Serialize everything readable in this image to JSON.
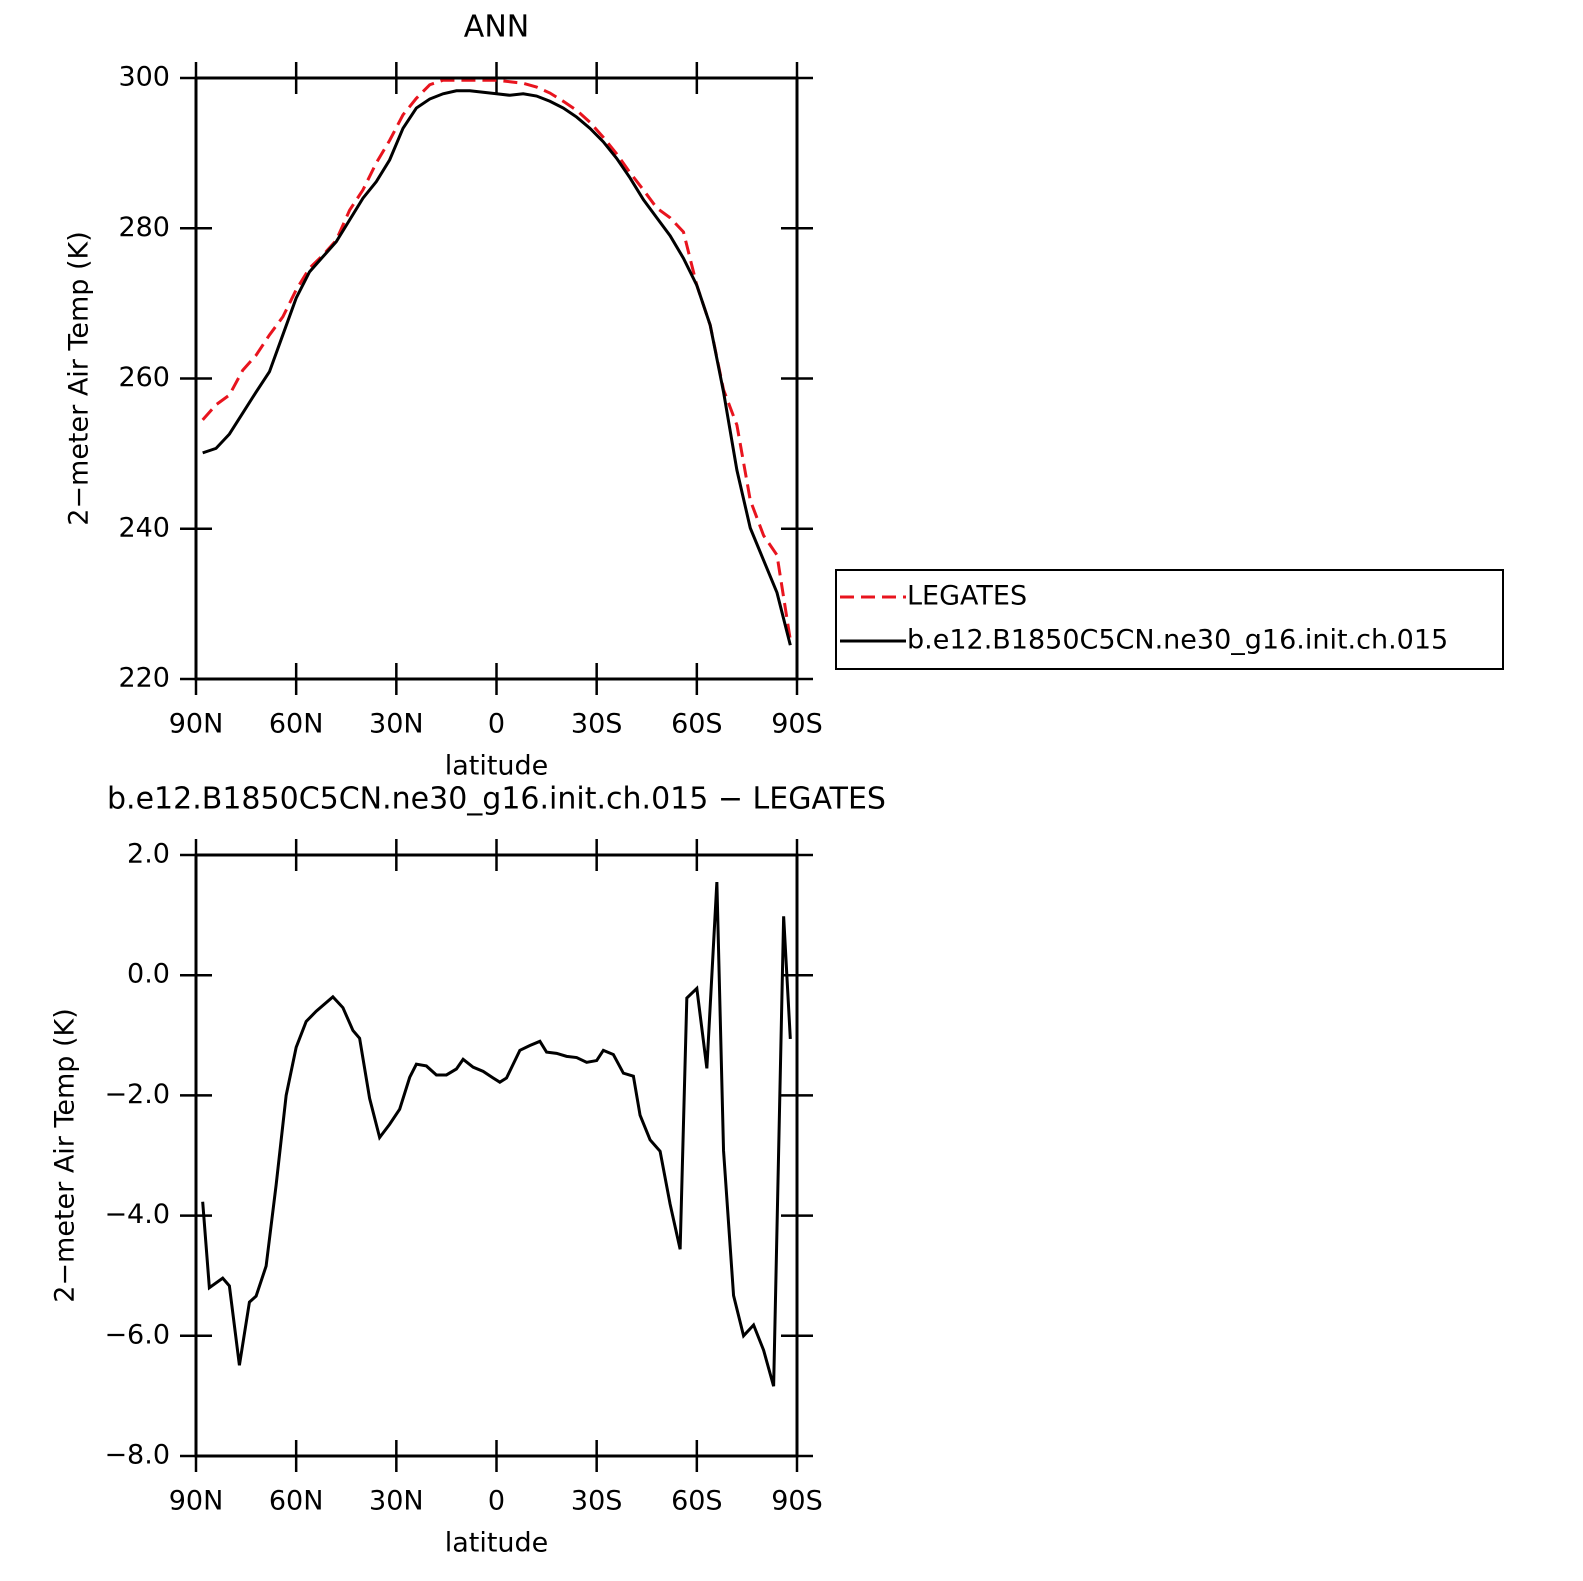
{
  "chart_data": [
    {
      "type": "line",
      "title": "ANN",
      "x_label": "latitude",
      "y_label": "2−meter Air Temp (K)",
      "x": [
        88,
        84,
        80,
        76,
        72,
        68,
        64,
        60,
        56,
        52,
        48,
        44,
        40,
        36,
        32,
        28,
        24,
        20,
        16,
        12,
        8,
        4,
        0,
        -4,
        -8,
        -12,
        -16,
        -20,
        -24,
        -28,
        -32,
        -36,
        -40,
        -44,
        -48,
        -52,
        -56,
        -60,
        -64,
        -68,
        -72,
        -76,
        -80,
        -84,
        -88
      ],
      "series": [
        {
          "name": "LEGATES",
          "color": "#e8141e",
          "dash": true,
          "values": [
            254.5,
            256.5,
            257.8,
            261.1,
            263.1,
            265.8,
            268.2,
            271.8,
            274.7,
            276.4,
            278.4,
            282.4,
            285.1,
            288.7,
            291.7,
            295.1,
            297.3,
            299.1,
            299.7,
            299.7,
            299.7,
            299.7,
            299.7,
            299.5,
            299.3,
            298.8,
            298.0,
            296.9,
            295.7,
            294.1,
            292.1,
            289.9,
            287.4,
            285.1,
            282.7,
            281.4,
            279.5,
            272.4,
            267.1,
            258.5,
            253.8,
            243.8,
            239.1,
            236.5,
            225.2
          ]
        },
        {
          "name": "b.e12.B1850C5CN.ne30_g16.init.ch.015",
          "color": "#000000",
          "dash": false,
          "values": [
            250.1,
            250.7,
            252.6,
            255.4,
            258.2,
            260.9,
            265.8,
            270.7,
            274.2,
            276.2,
            278.2,
            281.1,
            284.0,
            286.2,
            289.1,
            293.3,
            296.0,
            297.2,
            297.9,
            298.3,
            298.3,
            298.1,
            297.9,
            297.7,
            297.9,
            297.6,
            296.9,
            296.0,
            294.8,
            293.3,
            291.5,
            289.3,
            286.7,
            283.8,
            281.4,
            279.0,
            276.0,
            272.4,
            267.1,
            258.2,
            247.8,
            240.1,
            235.8,
            231.5,
            224.5
          ]
        }
      ],
      "xlim": [
        90,
        -90
      ],
      "xticks": [
        {
          "value": 90,
          "label": "90N"
        },
        {
          "value": 60,
          "label": "60N"
        },
        {
          "value": 30,
          "label": "30N"
        },
        0,
        {
          "value": -30,
          "label": "30S"
        },
        {
          "value": -60,
          "label": "60S"
        },
        {
          "value": -90,
          "label": "90S"
        }
      ],
      "ylim": [
        220,
        300
      ],
      "yticks": [
        220,
        240,
        260,
        280,
        300
      ],
      "legend": "right"
    },
    {
      "type": "line",
      "title": "b.e12.B1850C5CN.ne30_g16.init.ch.015 − LEGATES",
      "x_label": "latitude",
      "y_label": "2−meter Air Temp (K)",
      "x": [
        88,
        86,
        82,
        80,
        77,
        74,
        72,
        69,
        66,
        63,
        60,
        57,
        54,
        49,
        46,
        43,
        41,
        38,
        35,
        32,
        29,
        26,
        24,
        21,
        18,
        15,
        12,
        10,
        7,
        4,
        1,
        -1,
        -3,
        -7,
        -10,
        -13,
        -15,
        -18,
        -21,
        -24,
        -27,
        -30,
        -32,
        -35,
        -38,
        -41,
        -43,
        -46,
        -49,
        -52,
        -55,
        -57,
        -60,
        -63,
        -66,
        -68,
        -71,
        -74,
        -77,
        -80,
        -83,
        -86,
        -88
      ],
      "series": [
        {
          "color": "#000000",
          "dash": false,
          "values": [
            -3.77,
            -5.2,
            -5.04,
            -5.17,
            -6.49,
            -5.44,
            -5.34,
            -4.84,
            -3.49,
            -2.0,
            -1.2,
            -0.77,
            -0.6,
            -0.36,
            -0.54,
            -0.92,
            -1.05,
            -2.05,
            -2.7,
            -2.48,
            -2.23,
            -1.7,
            -1.48,
            -1.51,
            -1.66,
            -1.66,
            -1.56,
            -1.4,
            -1.53,
            -1.6,
            -1.71,
            -1.78,
            -1.71,
            -1.25,
            -1.17,
            -1.1,
            -1.28,
            -1.3,
            -1.35,
            -1.37,
            -1.45,
            -1.42,
            -1.25,
            -1.32,
            -1.63,
            -1.68,
            -2.33,
            -2.74,
            -2.93,
            -3.81,
            -4.56,
            -0.38,
            -0.22,
            -1.55,
            1.55,
            -2.92,
            -5.33,
            -6.0,
            -5.82,
            -6.24,
            -6.84,
            0.98,
            -1.06
          ]
        }
      ],
      "xlim": [
        90,
        -90
      ],
      "xticks": [
        {
          "value": 90,
          "label": "90N"
        },
        {
          "value": 60,
          "label": "60N"
        },
        {
          "value": 30,
          "label": "30N"
        },
        0,
        {
          "value": -30,
          "label": "30S"
        },
        {
          "value": -60,
          "label": "60S"
        },
        {
          "value": -90,
          "label": "90S"
        }
      ],
      "ylim": [
        -8,
        2
      ],
      "yticks": [
        {
          "value": -8,
          "label": "−8.0"
        },
        {
          "value": -6,
          "label": "−6.0"
        },
        {
          "value": -4,
          "label": "−4.0"
        },
        {
          "value": -2,
          "label": "−2.0"
        },
        {
          "value": 0,
          "label": "0.0"
        },
        {
          "value": 2,
          "label": "2.0"
        }
      ]
    }
  ]
}
